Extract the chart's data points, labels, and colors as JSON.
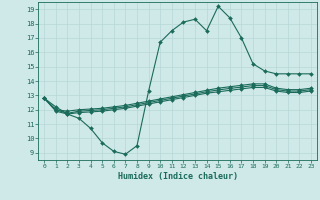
{
  "xlabel": "Humidex (Indice chaleur)",
  "xlim": [
    -0.5,
    23.5
  ],
  "ylim": [
    8.5,
    19.5
  ],
  "xticks": [
    0,
    1,
    2,
    3,
    4,
    5,
    6,
    7,
    8,
    9,
    10,
    11,
    12,
    13,
    14,
    15,
    16,
    17,
    18,
    19,
    20,
    21,
    22,
    23
  ],
  "yticks": [
    9,
    10,
    11,
    12,
    13,
    14,
    15,
    16,
    17,
    18,
    19
  ],
  "bg_color": "#cfe8e8",
  "grid_color": "#b8d8d8",
  "line_color": "#1a6b5a",
  "line1_y": [
    12.8,
    12.2,
    11.7,
    11.4,
    10.7,
    9.7,
    9.1,
    8.9,
    9.5,
    13.3,
    16.7,
    17.5,
    18.1,
    18.3,
    17.5,
    19.2,
    18.4,
    17.0,
    15.2,
    14.7,
    14.5,
    14.5,
    14.5,
    14.5
  ],
  "line2_y": [
    12.8,
    12.0,
    11.9,
    12.0,
    12.05,
    12.1,
    12.2,
    12.3,
    12.45,
    12.6,
    12.75,
    12.9,
    13.05,
    13.2,
    13.35,
    13.5,
    13.6,
    13.7,
    13.8,
    13.8,
    13.5,
    13.4,
    13.4,
    13.5
  ],
  "line3_y": [
    12.8,
    11.9,
    11.7,
    11.8,
    11.85,
    11.9,
    12.0,
    12.1,
    12.25,
    12.4,
    12.55,
    12.7,
    12.85,
    13.0,
    13.15,
    13.25,
    13.35,
    13.45,
    13.55,
    13.55,
    13.3,
    13.2,
    13.2,
    13.3
  ],
  "line4_y": [
    12.8,
    12.0,
    11.75,
    11.9,
    11.95,
    12.0,
    12.1,
    12.2,
    12.35,
    12.5,
    12.65,
    12.8,
    12.95,
    13.1,
    13.25,
    13.38,
    13.48,
    13.58,
    13.68,
    13.68,
    13.4,
    13.3,
    13.3,
    13.4
  ],
  "marker": "D",
  "marker_size": 2.0,
  "linewidth": 0.8,
  "figsize": [
    3.2,
    2.0
  ],
  "dpi": 100
}
